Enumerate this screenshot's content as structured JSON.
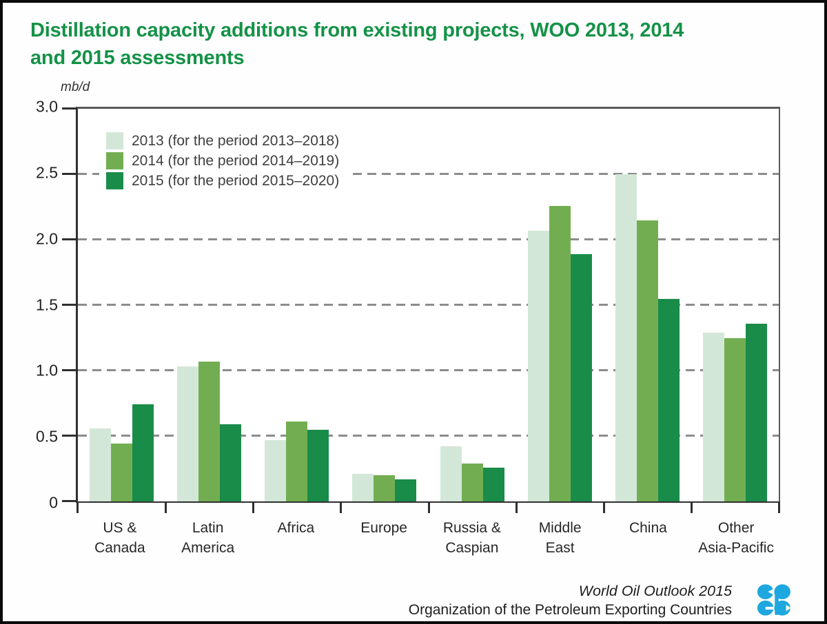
{
  "title": "Distillation capacity additions from existing projects, WOO 2013, 2014 and 2015 assessments",
  "title_lines": [
    "Distillation capacity additions from existing projects, WOO 2013, 2014",
    "and 2015 assessments"
  ],
  "units_label": "mb/d",
  "chart_data": {
    "type": "bar",
    "title": "Distillation capacity additions from existing projects, WOO 2013, 2014 and 2015 assessments",
    "xlabel": "",
    "ylabel": "mb/d",
    "ylim": [
      0,
      3.0
    ],
    "ytick_step": 0.5,
    "yticks": [
      "3.0",
      "2.5",
      "2.0",
      "1.5",
      "1.0",
      "0.5",
      "0"
    ],
    "grid": "dashed-horizontal",
    "legend_position": "top-left-inside",
    "categories": [
      "US &\nCanada",
      "Latin\nAmerica",
      "Africa",
      "Europe",
      "Russia &\nCaspian",
      "Middle\nEast",
      "China",
      "Other\nAsia-Pacific"
    ],
    "series": [
      {
        "name": "2013 (for the period 2013–2018)",
        "color": "#d3e7d9",
        "values": [
          0.56,
          1.03,
          0.47,
          0.21,
          0.42,
          2.07,
          2.5,
          1.29
        ]
      },
      {
        "name": "2014 (for the period 2014–2019)",
        "color": "#72ae51",
        "values": [
          0.44,
          1.07,
          0.61,
          0.2,
          0.29,
          2.26,
          2.15,
          1.25
        ]
      },
      {
        "name": "2015 (for the period 2015–2020)",
        "color": "#1a8c4a",
        "values": [
          0.74,
          0.59,
          0.55,
          0.17,
          0.26,
          1.89,
          1.55,
          1.36
        ]
      }
    ]
  },
  "footer": {
    "line1": "World Oil Outlook 2015",
    "line2": "Organization of the Petroleum Exporting Countries",
    "logo": "opec-logo"
  },
  "colors": {
    "title_green": "#149247",
    "opec_blue": "#1fa7e0",
    "grid_gray": "#8c8c8c",
    "axis_dark": "#2f2f2f",
    "axis_light": "#5a5a5a",
    "text_dark": "#272727"
  }
}
